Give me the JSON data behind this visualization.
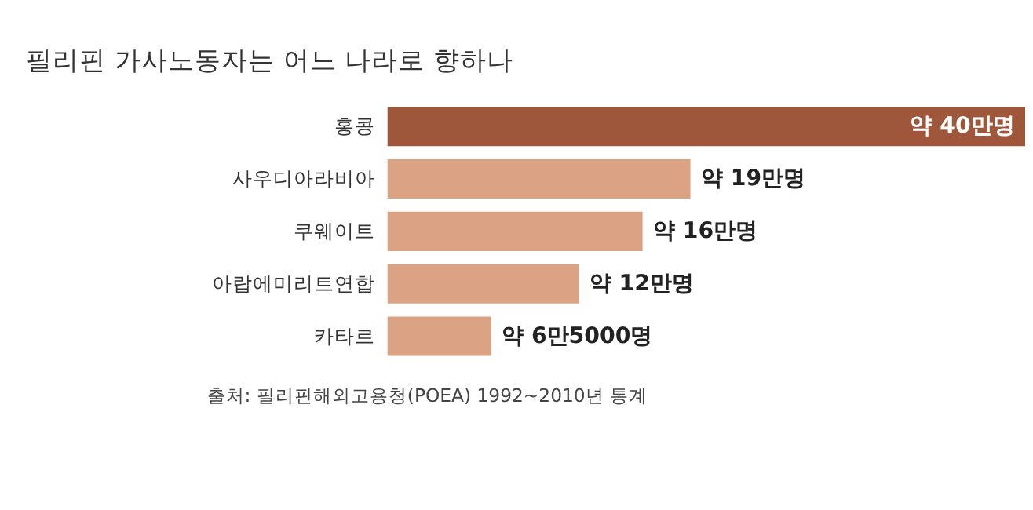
{
  "chart_data": {
    "type": "bar",
    "orientation": "horizontal",
    "title": "필리핀 가사노동자는 어느 나라로 향하나",
    "categories": [
      "홍콩",
      "사우디아라비아",
      "쿠웨이트",
      "아랍에미리트연합",
      "카타르"
    ],
    "values": [
      40,
      19,
      16,
      12,
      6.5
    ],
    "colors": [
      "#9e573b",
      "#dba283",
      "#dba283",
      "#dba283",
      "#dba283"
    ],
    "value_labels": [
      "약 40만명",
      "약 19만명",
      "약 16만명",
      "약 12만명",
      "약 6만5000명"
    ],
    "annotations": [
      "출처: 필리핀해외고용청(POEA) 1992~2010년 통계"
    ],
    "grid": false
  }
}
